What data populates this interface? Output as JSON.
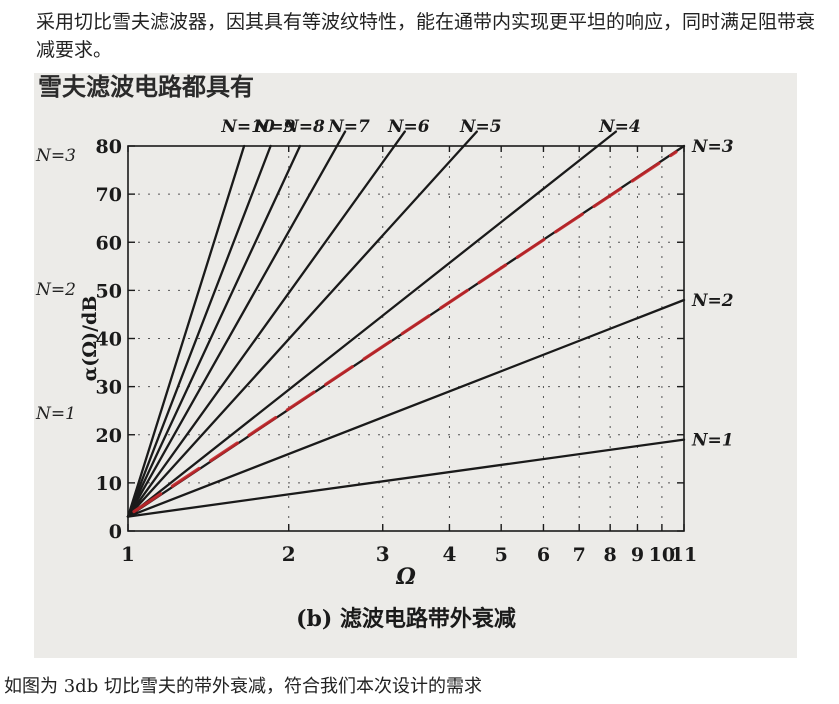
{
  "intro_text": "采用切比雪夫滤波器，因其具有等波纹特性，能在通带内实现更平坦的响应，同时满足阻带衰减要求。",
  "photo_header_text": "雪夫滤波电路都具有",
  "bottom_caption": "如图为 3db 切比雪夫的带外衰减，符合我们本次设计的需求",
  "left_margin_labels": [
    "N=3",
    "N=2",
    "N=1"
  ],
  "colors": {
    "curve": "#1a1a1a",
    "red_marker": "#c4262a",
    "paper": "#ecebe8",
    "grid": "#555555"
  },
  "chart_data": {
    "type": "line",
    "title": "",
    "subtitle": "(b) 滤波电路带外衰减",
    "xlabel": "Ω",
    "ylabel": "α(Ω)/dB",
    "x_scale": "log",
    "xlim": [
      1,
      11
    ],
    "ylim": [
      0,
      80
    ],
    "x_ticks": [
      1,
      2,
      3,
      4,
      5,
      6,
      7,
      8,
      9,
      10,
      11
    ],
    "x_tick_labels": [
      "1",
      "2",
      "3",
      "4",
      "5",
      "6",
      "7",
      "8",
      "9",
      "10",
      "11"
    ],
    "y_ticks": [
      0,
      10,
      20,
      30,
      40,
      50,
      60,
      70,
      80
    ],
    "y_tick_labels": [
      "0",
      "10",
      "20",
      "30",
      "40",
      "50",
      "60",
      "70",
      "80"
    ],
    "grid": true,
    "series": [
      {
        "name": "N=1",
        "x": [
          1,
          11
        ],
        "y": [
          3,
          19
        ]
      },
      {
        "name": "N=2",
        "x": [
          1,
          11
        ],
        "y": [
          3,
          48
        ]
      },
      {
        "name": "N=3",
        "x": [
          1,
          11
        ],
        "y": [
          3,
          80
        ]
      },
      {
        "name": "N=4",
        "x": [
          1,
          8.2
        ],
        "y": [
          3,
          83
        ]
      },
      {
        "name": "N=5",
        "x": [
          1,
          4.5
        ],
        "y": [
          3,
          83
        ]
      },
      {
        "name": "N=6",
        "x": [
          1,
          3.3
        ],
        "y": [
          3,
          83
        ]
      },
      {
        "name": "N=7",
        "x": [
          1,
          2.55
        ],
        "y": [
          3,
          83
        ]
      },
      {
        "name": "N=8",
        "x": [
          1,
          2.1
        ],
        "y": [
          3,
          80
        ]
      },
      {
        "name": "N=9",
        "x": [
          1,
          1.85
        ],
        "y": [
          3,
          80
        ]
      },
      {
        "name": "N=10",
        "x": [
          1,
          1.65
        ],
        "y": [
          3,
          80
        ]
      }
    ]
  }
}
